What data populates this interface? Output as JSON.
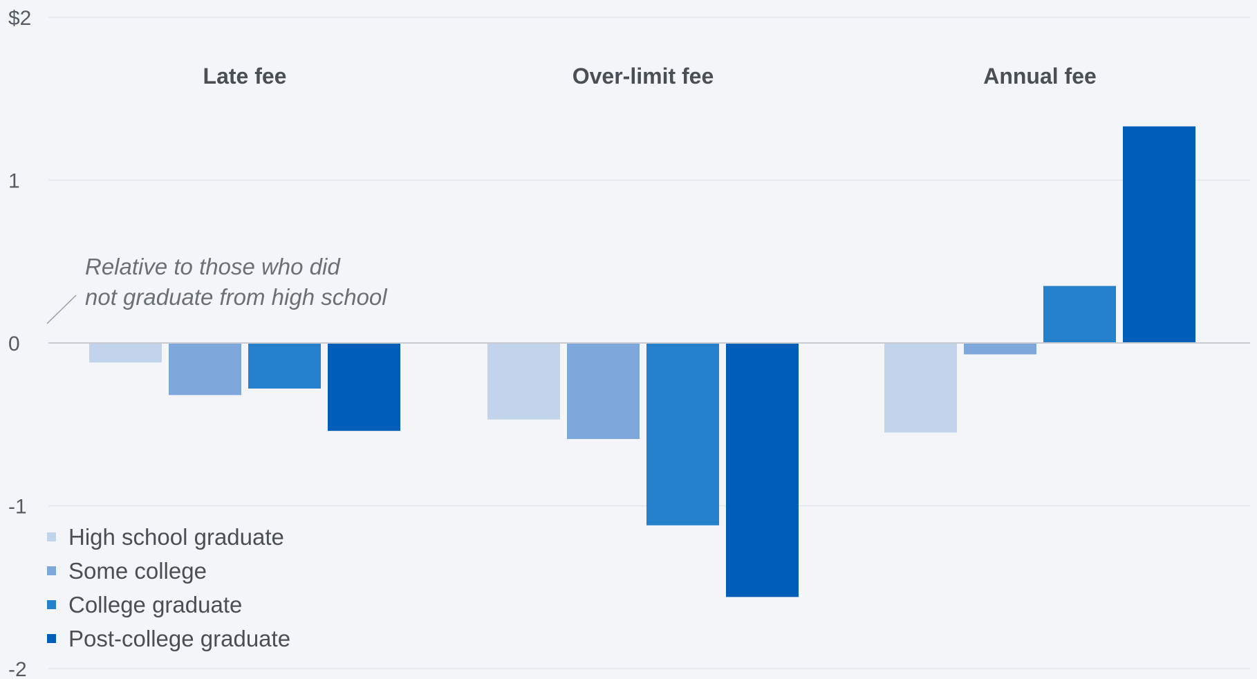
{
  "chart_data": {
    "type": "bar",
    "categories": [
      "Late fee",
      "Over-limit fee",
      "Annual fee"
    ],
    "series": [
      {
        "name": "High school graduate",
        "color": "#c2d3ec",
        "values": [
          -0.12,
          -0.47,
          -0.55
        ]
      },
      {
        "name": "Some college",
        "color": "#7ea8db",
        "values": [
          -0.32,
          -0.59,
          -0.07
        ]
      },
      {
        "name": "College graduate",
        "color": "#2681cc",
        "values": [
          -0.28,
          -1.12,
          0.35
        ]
      },
      {
        "name": "Post-college graduate",
        "color": "#005eb8",
        "values": [
          -0.54,
          -1.56,
          1.33
        ]
      }
    ],
    "y_ticks": [
      "$2",
      "1",
      "0",
      "-1",
      "-2"
    ],
    "y_tick_values": [
      2,
      1,
      0,
      -1,
      -2
    ],
    "ylim": [
      -2,
      2
    ],
    "grid": true,
    "legend_position": "bottom-left",
    "annotation": [
      "Relative to those who did",
      "not graduate from high school"
    ]
  }
}
